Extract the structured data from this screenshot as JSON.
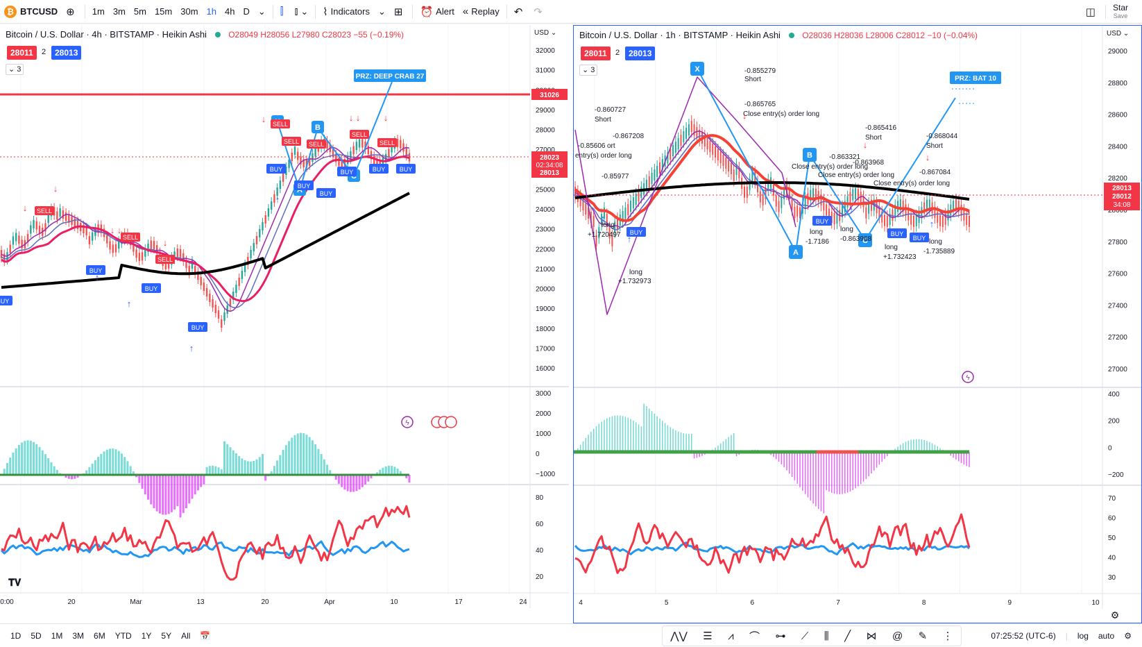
{
  "toolbar": {
    "symbol": "BTCUSD",
    "intervals": [
      "1m",
      "3m",
      "5m",
      "15m",
      "30m",
      "1h",
      "4h",
      "D"
    ],
    "active_interval": "1h",
    "indicators_label": "Indicators",
    "alert_label": "Alert",
    "replay_label": "Replay",
    "star_label": "Star",
    "save_label": "Save"
  },
  "left_chart": {
    "legend_title": "Bitcoin / U.S. Dollar · 4h · BITSTAMP · Heikin Ashi",
    "ohlc": "O28049 H28056 L27980 C28023 −55 (−0.19%)",
    "bid": "28011",
    "spread": "2",
    "ask": "28013",
    "collapse_count": "3",
    "currency": "USD",
    "price_labels": [
      "32000",
      "31000",
      "30000",
      "29000",
      "28000",
      "27000",
      "26000",
      "25000",
      "24000",
      "23000",
      "22000",
      "21000",
      "20000",
      "19000",
      "18000",
      "17000",
      "16000"
    ],
    "line_tag": "31026",
    "price_tag": "28023",
    "countdown_tag": "02:34:08",
    "ask_tag": "28013",
    "osc_labels": [
      "3000",
      "2000",
      "1000",
      "0",
      "−1000"
    ],
    "rsi_labels": [
      "80",
      "60",
      "40",
      "20"
    ],
    "date_labels": [
      "0:00",
      "20",
      "Mar",
      "13",
      "20",
      "Apr",
      "10",
      "17",
      "24"
    ],
    "prz_label": "PRZ: DEEP CRAB 27",
    "pattern_points": [
      "X",
      "A",
      "B",
      "C"
    ]
  },
  "right_chart": {
    "legend_title": "Bitcoin / U.S. Dollar · 1h · BITSTAMP · Heikin Ashi",
    "ohlc": "O28036 H28036 L28006 C28012 −10 (−0.04%)",
    "bid": "28011",
    "spread": "2",
    "ask": "28013",
    "collapse_count": "3",
    "currency": "USD",
    "price_labels": [
      "29000",
      "28800",
      "28600",
      "28400",
      "28200",
      "28000",
      "27800",
      "27600",
      "27400",
      "27200",
      "27000"
    ],
    "price_tag": "28013",
    "price_tag2": "28012",
    "countdown_tag": "34:08",
    "osc_labels": [
      "400",
      "200",
      "0",
      "−200"
    ],
    "rsi_labels": [
      "70",
      "60",
      "50",
      "40",
      "30"
    ],
    "date_labels": [
      "4",
      "5",
      "6",
      "7",
      "8",
      "9",
      "10"
    ],
    "prz_label": "PRZ: BAT 10",
    "pattern_points": [
      "X",
      "A",
      "B",
      "C"
    ],
    "annotations": [
      "-0.855279",
      "Short",
      "-0.860727",
      "Short",
      "-0.865765",
      "Close entry(s) order long",
      "-0.867208",
      "-0.85606",
      "ort",
      "entry(s) order long",
      "-0.865416",
      "Short",
      "-0.868044",
      "Short",
      "-0.863321",
      "Close entry(s) order long",
      "-0.863968",
      "Close entry(s) order long",
      "-0.867084",
      "Close entry(s) order long",
      "long",
      "+1.720497",
      "long",
      "+1.732973",
      "long",
      "-1.7186",
      "long",
      "-0.863968",
      "long",
      "+1.732423",
      "long",
      "-1.735889",
      "-0.85977"
    ]
  },
  "bottom": {
    "ranges": [
      "1D",
      "5D",
      "1M",
      "3M",
      "6M",
      "YTD",
      "1Y",
      "5Y",
      "All"
    ],
    "time": "07:25:52 (UTC-6)",
    "log_label": "log",
    "auto_label": "auto"
  },
  "colors": {
    "accent": "#2962ff",
    "red": "#f23645",
    "green": "#089981",
    "rsi_red": "#f23645",
    "rsi_blue": "#2196f3"
  }
}
